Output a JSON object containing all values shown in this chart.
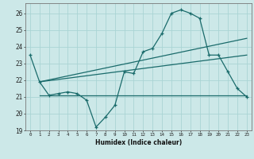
{
  "xlabel": "Humidex (Indice chaleur)",
  "bg_color": "#cce8e8",
  "line_color": "#1a6b6b",
  "grid_color": "#aad4d4",
  "xlim": [
    -0.5,
    23.5
  ],
  "ylim": [
    19,
    26.6
  ],
  "yticks": [
    19,
    20,
    21,
    22,
    23,
    24,
    25,
    26
  ],
  "xticks": [
    0,
    1,
    2,
    3,
    4,
    5,
    6,
    7,
    8,
    9,
    10,
    11,
    12,
    13,
    14,
    15,
    16,
    17,
    18,
    19,
    20,
    21,
    22,
    23
  ],
  "series1_x": [
    0,
    1,
    2,
    3,
    4,
    5,
    6,
    7,
    8,
    9,
    10,
    11,
    12,
    13,
    14,
    15,
    16,
    17,
    18,
    19,
    20,
    21,
    22,
    23
  ],
  "series1_y": [
    23.5,
    21.9,
    21.1,
    21.2,
    21.3,
    21.2,
    20.8,
    19.2,
    19.8,
    20.5,
    22.5,
    22.4,
    23.7,
    23.9,
    24.8,
    26.0,
    26.2,
    26.0,
    25.7,
    23.5,
    23.5,
    22.5,
    21.5,
    21.0
  ],
  "series2_x": [
    1,
    23
  ],
  "series2_y": [
    21.1,
    21.1
  ],
  "series3_x": [
    1,
    23
  ],
  "series3_y": [
    21.9,
    24.5
  ],
  "series4_x": [
    1,
    23
  ],
  "series4_y": [
    21.9,
    23.5
  ]
}
